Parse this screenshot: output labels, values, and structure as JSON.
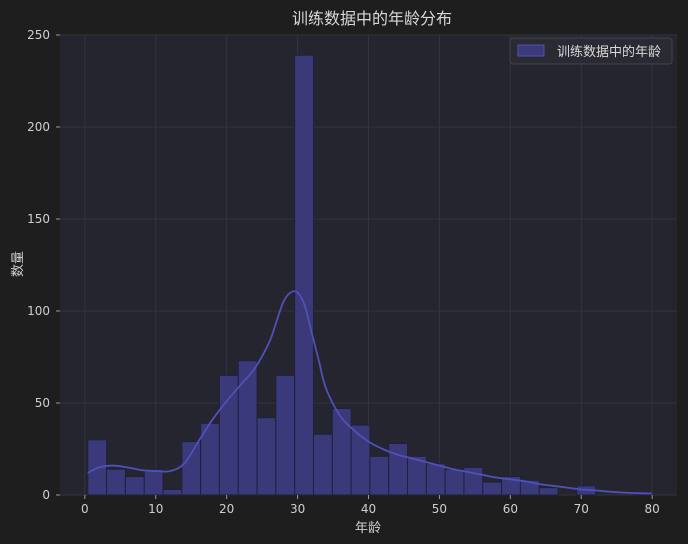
{
  "chart_data": {
    "type": "bar",
    "title": "训练数据中的年龄分布",
    "xlabel": "年龄",
    "ylabel": "数量",
    "xlim": [
      -3.5,
      83.5
    ],
    "ylim": [
      0,
      250
    ],
    "xticks": [
      0,
      10,
      20,
      30,
      40,
      50,
      60,
      70,
      80
    ],
    "yticks": [
      0,
      50,
      100,
      150,
      200,
      250
    ],
    "grid": true,
    "legend": {
      "position": "top-right",
      "label": "训练数据中的年龄"
    },
    "colors": {
      "bar_fill": "#3a3a7a",
      "bar_edge": "#20203c",
      "kde_line": "#5050b8",
      "plot_bg": "#252530",
      "figure_bg": "#1e1e1e",
      "grid": "#33333d"
    },
    "bins": [
      {
        "x0": 0.42,
        "x1": 3.07,
        "count": 30
      },
      {
        "x0": 3.07,
        "x1": 5.72,
        "count": 14
      },
      {
        "x0": 5.72,
        "x1": 8.38,
        "count": 10
      },
      {
        "x0": 8.38,
        "x1": 11.03,
        "count": 14
      },
      {
        "x0": 11.03,
        "x1": 13.68,
        "count": 3
      },
      {
        "x0": 13.68,
        "x1": 16.33,
        "count": 29
      },
      {
        "x0": 16.33,
        "x1": 18.98,
        "count": 39
      },
      {
        "x0": 18.98,
        "x1": 21.64,
        "count": 65
      },
      {
        "x0": 21.64,
        "x1": 24.29,
        "count": 73
      },
      {
        "x0": 24.29,
        "x1": 26.94,
        "count": 42
      },
      {
        "x0": 26.94,
        "x1": 29.59,
        "count": 65
      },
      {
        "x0": 29.59,
        "x1": 32.24,
        "count": 239
      },
      {
        "x0": 32.24,
        "x1": 34.9,
        "count": 33
      },
      {
        "x0": 34.9,
        "x1": 37.55,
        "count": 47
      },
      {
        "x0": 37.55,
        "x1": 40.2,
        "count": 38
      },
      {
        "x0": 40.2,
        "x1": 42.85,
        "count": 21
      },
      {
        "x0": 42.85,
        "x1": 45.5,
        "count": 28
      },
      {
        "x0": 45.5,
        "x1": 48.16,
        "count": 21
      },
      {
        "x0": 48.16,
        "x1": 50.81,
        "count": 17
      },
      {
        "x0": 50.81,
        "x1": 53.46,
        "count": 14
      },
      {
        "x0": 53.46,
        "x1": 56.11,
        "count": 15
      },
      {
        "x0": 56.11,
        "x1": 58.76,
        "count": 7
      },
      {
        "x0": 58.76,
        "x1": 61.42,
        "count": 10
      },
      {
        "x0": 61.42,
        "x1": 64.07,
        "count": 8
      },
      {
        "x0": 64.07,
        "x1": 66.72,
        "count": 4
      },
      {
        "x0": 66.72,
        "x1": 69.37,
        "count": 0
      },
      {
        "x0": 69.37,
        "x1": 72.02,
        "count": 5
      },
      {
        "x0": 72.02,
        "x1": 74.68,
        "count": 0
      },
      {
        "x0": 74.68,
        "x1": 77.33,
        "count": 0
      },
      {
        "x0": 77.33,
        "x1": 80.0,
        "count": 1
      }
    ],
    "kde": {
      "x": [
        0.42,
        2,
        4,
        6,
        8,
        10,
        12,
        14,
        16,
        18,
        20,
        22,
        24,
        26,
        27,
        28,
        29,
        30,
        31,
        32,
        33,
        34,
        36,
        38,
        40,
        42,
        44,
        46,
        48,
        50,
        52,
        54,
        56,
        58,
        60,
        62,
        64,
        66,
        68,
        70,
        72,
        74,
        76,
        78,
        80
      ],
      "y": [
        12,
        15,
        16,
        15,
        13.5,
        13,
        13,
        17,
        29,
        41,
        51,
        60,
        69,
        83,
        94,
        105,
        110,
        110,
        103,
        88,
        73,
        58,
        43,
        35,
        29,
        25,
        22,
        20,
        18,
        16,
        14,
        12.5,
        11,
        9.5,
        8.5,
        7.5,
        6,
        5,
        4,
        3,
        2.5,
        1.8,
        1.3,
        1,
        0.8
      ]
    }
  }
}
